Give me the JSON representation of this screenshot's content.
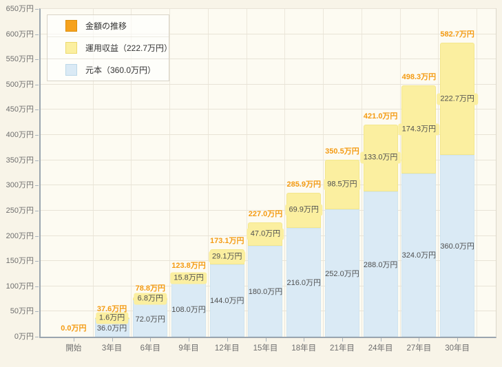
{
  "chart_data": {
    "type": "bar",
    "stacked": true,
    "title": "金額の推移",
    "unit": "万円",
    "categories": [
      "開始",
      "3年目",
      "6年目",
      "9年目",
      "12年目",
      "15年目",
      "18年目",
      "21年目",
      "24年目",
      "27年目",
      "30年目"
    ],
    "series": [
      {
        "name": "元本（360.0万円）",
        "key": "principal",
        "color": "#daeaf5",
        "border": "#cfe4f1",
        "values": [
          0,
          36.0,
          72.0,
          108.0,
          144.0,
          180.0,
          216.0,
          252.0,
          288.0,
          324.0,
          360.0
        ],
        "value_labels": [
          "",
          "36.0万円",
          "72.0万円",
          "108.0万円",
          "144.0万円",
          "180.0万円",
          "216.0万円",
          "252.0万円",
          "288.0万円",
          "324.0万円",
          "360.0万円"
        ]
      },
      {
        "name": "運用収益（222.7万円）",
        "key": "profit",
        "color": "#fbefa0",
        "border": "#f3e78c",
        "values": [
          0,
          1.6,
          6.8,
          15.8,
          29.1,
          47.0,
          69.9,
          98.5,
          133.0,
          174.3,
          222.7
        ],
        "value_labels": [
          "",
          "1.6万円",
          "6.8万円",
          "15.8万円",
          "29.1万円",
          "47.0万円",
          "69.9万円",
          "98.5万円",
          "133.0万円",
          "174.3万円",
          "222.7万円"
        ]
      }
    ],
    "totals": [
      0.0,
      37.6,
      78.8,
      123.8,
      173.1,
      227.0,
      285.9,
      350.5,
      421.0,
      498.3,
      582.7
    ],
    "total_labels": [
      "0.0万円",
      "37.6万円",
      "78.8万円",
      "123.8万円",
      "173.1万円",
      "227.0万円",
      "285.9万円",
      "350.5万円",
      "421.0万円",
      "498.3万円",
      "582.7万円"
    ],
    "ylim": [
      0,
      650
    ],
    "ytick_step": 50,
    "ytick_suffix": "万円",
    "grid": true,
    "legend_position": "top-left",
    "legend": [
      {
        "label": "金額の推移",
        "color": "#f6a21d",
        "border": "#dd8f0a"
      },
      {
        "label": "運用収益（222.7万円）",
        "color": "#fbefa0",
        "border": "#ecd96e"
      },
      {
        "label": "元本（360.0万円）",
        "color": "#daeaf5",
        "border": "#bcd8e8"
      }
    ],
    "colors": {
      "total_label": "#f49b13",
      "value_label": "#4f4f4f",
      "plot_bg": "#fdfbf2",
      "page_bg": "#f8f4e8",
      "axis": "#9aa5af",
      "grid_h": "#e8e3d6",
      "grid_v": "#ece7db"
    }
  }
}
